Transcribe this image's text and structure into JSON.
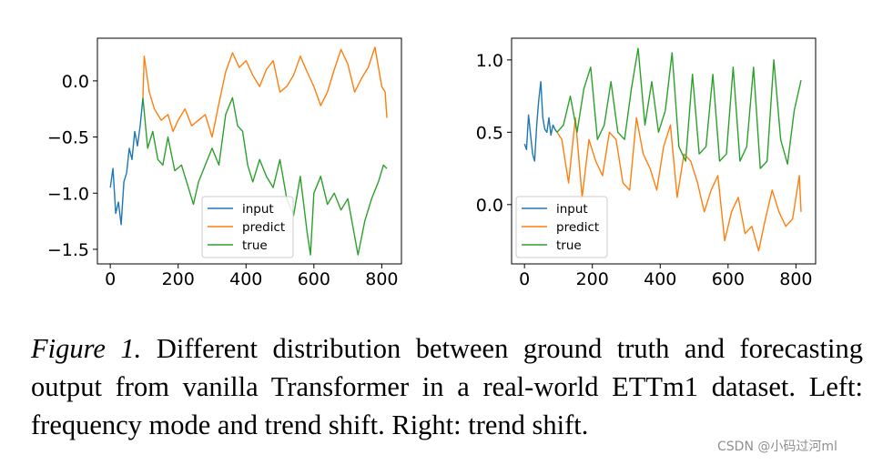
{
  "chart_data": [
    {
      "type": "line",
      "position": "left",
      "title": "",
      "xlabel": "",
      "ylabel": "",
      "xlim": [
        -38,
        858
      ],
      "ylim": [
        -1.63,
        0.38
      ],
      "xticks": [
        0,
        200,
        400,
        600,
        800
      ],
      "yticks": [
        0.0,
        -0.5,
        -1.0,
        -1.5
      ],
      "ytick_labels": [
        "0.0",
        "−0.5",
        "−1.0",
        "−1.5"
      ],
      "grid": false,
      "legend": {
        "placement": "lower-center",
        "entries": [
          "input",
          "predict",
          "true"
        ]
      },
      "series": [
        {
          "name": "input",
          "color": "#1f77b4",
          "x": [
            0,
            8,
            16,
            24,
            32,
            40,
            48,
            56,
            64,
            72,
            80,
            88,
            96
          ],
          "y": [
            -0.95,
            -0.78,
            -1.18,
            -1.08,
            -1.28,
            -0.9,
            -0.82,
            -0.6,
            -0.7,
            -0.45,
            -0.58,
            -0.4,
            -0.15
          ]
        },
        {
          "name": "predict",
          "color": "#ff7f0e",
          "x": [
            96,
            100,
            115,
            130,
            150,
            170,
            185,
            200,
            220,
            240,
            260,
            280,
            300,
            320,
            340,
            360,
            380,
            400,
            420,
            440,
            460,
            480,
            500,
            520,
            540,
            560,
            580,
            600,
            620,
            640,
            660,
            680,
            700,
            720,
            740,
            760,
            780,
            800,
            810,
            815
          ],
          "y": [
            -0.15,
            0.22,
            -0.1,
            -0.25,
            -0.35,
            -0.3,
            -0.45,
            -0.35,
            -0.25,
            -0.4,
            -0.35,
            -0.3,
            -0.5,
            -0.2,
            0.08,
            0.25,
            0.12,
            0.18,
            0.05,
            -0.05,
            0.1,
            0.18,
            -0.1,
            -0.05,
            0.05,
            0.22,
            0.08,
            -0.05,
            -0.22,
            -0.1,
            0.1,
            0.28,
            0.15,
            -0.1,
            0.02,
            0.12,
            0.3,
            -0.05,
            -0.1,
            -0.33
          ]
        },
        {
          "name": "true",
          "color": "#2ca02c",
          "x": [
            96,
            110,
            125,
            140,
            155,
            170,
            190,
            210,
            230,
            245,
            260,
            280,
            300,
            320,
            340,
            360,
            375,
            390,
            405,
            420,
            440,
            460,
            480,
            500,
            520,
            540,
            560,
            580,
            590,
            600,
            620,
            640,
            660,
            680,
            700,
            715,
            730,
            750,
            770,
            790,
            805,
            815
          ],
          "y": [
            -0.15,
            -0.6,
            -0.45,
            -0.7,
            -0.75,
            -0.5,
            -0.8,
            -0.75,
            -0.95,
            -1.1,
            -0.9,
            -0.75,
            -0.6,
            -0.75,
            -0.3,
            -0.15,
            -0.4,
            -0.45,
            -0.75,
            -0.9,
            -0.7,
            -0.85,
            -0.95,
            -0.7,
            -1.05,
            -1.2,
            -0.85,
            -1.35,
            -1.55,
            -1.0,
            -0.85,
            -1.1,
            -1.0,
            -1.15,
            -1.05,
            -1.3,
            -1.55,
            -1.25,
            -1.05,
            -0.9,
            -0.75,
            -0.78
          ]
        }
      ]
    },
    {
      "type": "line",
      "position": "right",
      "title": "",
      "xlabel": "",
      "ylabel": "",
      "xlim": [
        -38,
        858
      ],
      "ylim": [
        -0.41,
        1.15
      ],
      "xticks": [
        0,
        200,
        400,
        600,
        800
      ],
      "yticks": [
        1.0,
        0.5,
        0.0
      ],
      "ytick_labels": [
        "1.0",
        "0.5",
        "0.0"
      ],
      "grid": false,
      "legend": {
        "placement": "lower-left",
        "entries": [
          "input",
          "predict",
          "true"
        ]
      },
      "series": [
        {
          "name": "input",
          "color": "#1f77b4",
          "x": [
            0,
            6,
            12,
            18,
            24,
            30,
            36,
            42,
            48,
            54,
            60,
            66,
            72,
            78,
            84,
            90,
            96
          ],
          "y": [
            0.42,
            0.38,
            0.62,
            0.48,
            0.35,
            0.3,
            0.55,
            0.72,
            0.85,
            0.6,
            0.52,
            0.5,
            0.6,
            0.48,
            0.55,
            0.52,
            0.5
          ]
        },
        {
          "name": "predict",
          "color": "#ff7f0e",
          "x": [
            96,
            110,
            130,
            150,
            170,
            190,
            210,
            230,
            250,
            270,
            290,
            310,
            330,
            350,
            370,
            390,
            410,
            430,
            450,
            470,
            490,
            510,
            530,
            550,
            570,
            590,
            610,
            630,
            650,
            670,
            690,
            710,
            730,
            750,
            770,
            790,
            810,
            815
          ],
          "y": [
            0.5,
            0.45,
            0.15,
            0.6,
            0.05,
            0.45,
            0.3,
            0.2,
            0.5,
            0.45,
            0.15,
            0.1,
            0.6,
            0.35,
            0.25,
            0.1,
            0.4,
            0.55,
            0.05,
            0.35,
            0.3,
            0.15,
            -0.05,
            0.1,
            0.2,
            -0.25,
            -0.05,
            0.05,
            -0.2,
            -0.15,
            -0.32,
            -0.1,
            0.1,
            -0.05,
            -0.15,
            -0.1,
            0.2,
            -0.05
          ]
        },
        {
          "name": "true",
          "color": "#2ca02c",
          "x": [
            96,
            115,
            135,
            155,
            175,
            195,
            215,
            235,
            255,
            275,
            295,
            315,
            335,
            355,
            375,
            395,
            415,
            435,
            455,
            475,
            495,
            515,
            535,
            555,
            575,
            595,
            615,
            635,
            655,
            675,
            695,
            715,
            735,
            755,
            775,
            795,
            815
          ],
          "y": [
            0.5,
            0.55,
            0.75,
            0.5,
            0.8,
            0.95,
            0.45,
            0.55,
            0.85,
            0.5,
            0.45,
            0.8,
            1.08,
            0.55,
            0.85,
            0.5,
            0.65,
            1.05,
            0.4,
            0.3,
            0.9,
            0.35,
            0.4,
            0.9,
            0.3,
            0.35,
            0.95,
            0.3,
            0.4,
            0.95,
            0.25,
            0.3,
            1.0,
            0.45,
            0.28,
            0.65,
            0.86
          ]
        }
      ]
    }
  ],
  "caption": {
    "label": "Figure 1.",
    "text": "Different distribution between ground truth and forecasting output from vanilla Transformer in a real-world ETTm1 dataset. Left: frequency mode and trend shift. Right: trend shift."
  },
  "watermark": "CSDN @小码过河ml"
}
